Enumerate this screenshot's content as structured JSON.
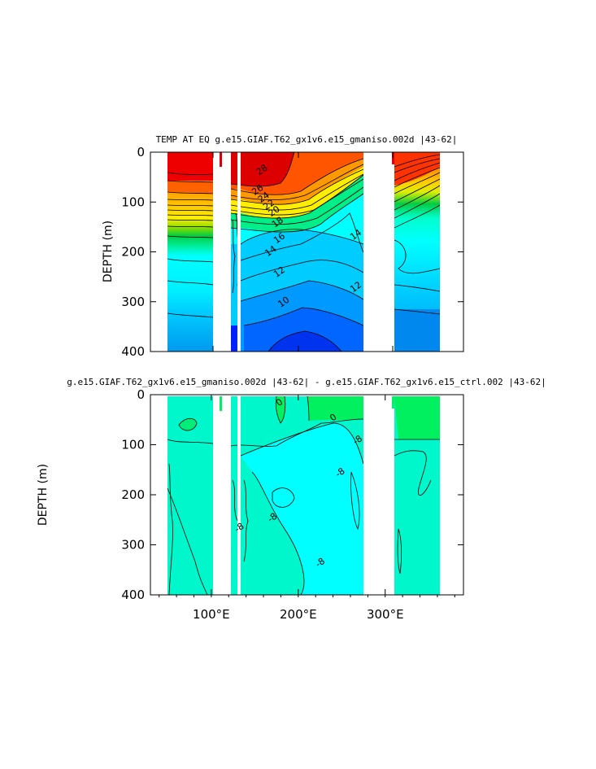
{
  "chart_data": [
    {
      "type": "heatmap",
      "title": "TEMP AT EQ  g.e15.GIAF.T62_gx1v6.e15_gmaniso.002d  |43-62|",
      "xlabel": "",
      "ylabel": "DEPTH (m)",
      "xlim": [
        30,
        390
      ],
      "ylim": [
        400,
        0
      ],
      "y_ticks": [
        "0",
        "100",
        "200",
        "300",
        "400"
      ],
      "x_ticks": [],
      "land_gaps_lon": [
        [
          98,
          114
        ],
        [
          124,
          128
        ],
        [
          278,
          312
        ],
        [
          368,
          390
        ]
      ],
      "contour_labels": [
        {
          "lon": 158,
          "depth": 35,
          "text": "28"
        },
        {
          "lon": 153,
          "depth": 75,
          "text": "26"
        },
        {
          "lon": 160,
          "depth": 90,
          "text": "24"
        },
        {
          "lon": 166,
          "depth": 105,
          "text": "22"
        },
        {
          "lon": 172,
          "depth": 118,
          "text": "20"
        },
        {
          "lon": 176,
          "depth": 140,
          "text": "18"
        },
        {
          "lon": 178,
          "depth": 172,
          "text": "16"
        },
        {
          "lon": 168,
          "depth": 198,
          "text": "14"
        },
        {
          "lon": 178,
          "depth": 240,
          "text": "12"
        },
        {
          "lon": 183,
          "depth": 300,
          "text": "10"
        },
        {
          "lon": 266,
          "depth": 165,
          "text": "14"
        },
        {
          "lon": 266,
          "depth": 270,
          "text": "12"
        }
      ],
      "colors": {
        "warm": "#dd0000",
        "mid": "#eeee00",
        "green": "#00cc33",
        "cool": "#00ccff",
        "deep": "#0022ee"
      }
    },
    {
      "type": "heatmap",
      "title": "g.e15.GIAF.T62_gx1v6.e15_gmaniso.002d |43-62| - g.e15.GIAF.T62_gx1v6.e15_ctrl.002 |43-62|",
      "xlabel": "",
      "ylabel": "DEPTH (m)",
      "xlim": [
        30,
        390
      ],
      "ylim": [
        400,
        0
      ],
      "y_ticks": [
        "0",
        "100",
        "200",
        "300",
        "400"
      ],
      "x_ticks": [
        "100°E",
        "200°E",
        "300°E"
      ],
      "land_gaps_lon": [
        [
          98,
          114
        ],
        [
          124,
          128
        ],
        [
          278,
          312
        ],
        [
          368,
          390
        ]
      ],
      "contour_labels": [
        {
          "lon": 240,
          "depth": 45,
          "text": "0"
        },
        {
          "lon": 178,
          "depth": 15,
          "text": "0"
        },
        {
          "lon": 268,
          "depth": 90,
          "text": "-8"
        },
        {
          "lon": 248,
          "depth": 155,
          "text": "-8"
        },
        {
          "lon": 170,
          "depth": 245,
          "text": "-8"
        },
        {
          "lon": 132,
          "depth": 265,
          "text": "-8"
        },
        {
          "lon": 225,
          "depth": 335,
          "text": "-8"
        }
      ],
      "colors": {
        "base": "#00f7cc",
        "cyan": "#00ffff",
        "green": "#00f060"
      }
    }
  ]
}
